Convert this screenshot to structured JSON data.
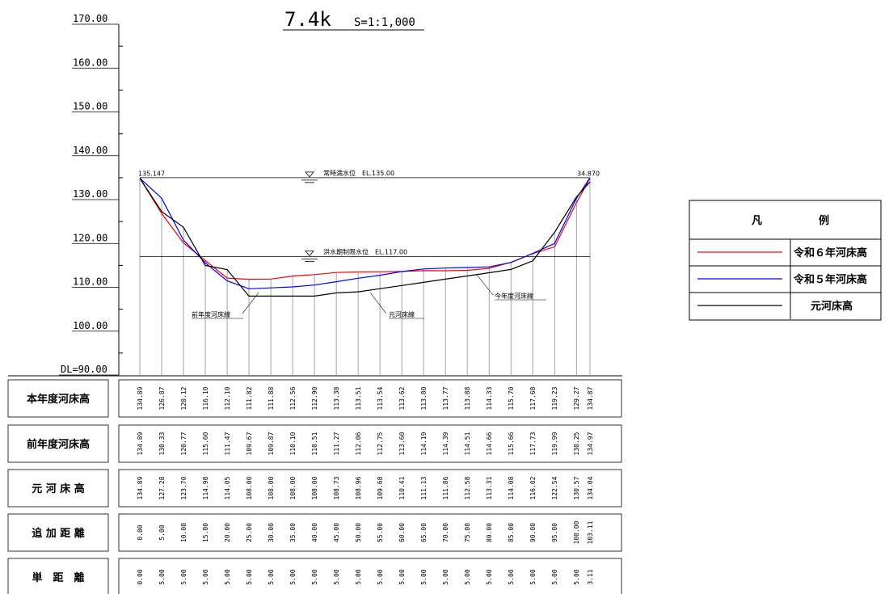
{
  "chart_data": {
    "type": "line",
    "title": "7.4k",
    "scale_label": "S=1:1,000",
    "datum_label": "DL=90.00",
    "y_ticks": [
      "170.00",
      "160.00",
      "150.00",
      "140.00",
      "130.00",
      "120.00",
      "110.00",
      "100.00"
    ],
    "ylim": [
      90,
      170
    ],
    "xlim": [
      0,
      103.11
    ],
    "x": [
      0,
      5,
      10,
      15,
      20,
      25,
      30,
      35,
      40,
      45,
      50,
      55,
      60,
      65,
      70,
      75,
      80,
      85,
      90,
      95,
      100,
      103.11
    ],
    "series": [
      {
        "name": "令和６年河床高",
        "color": "#ff0000",
        "values": [
          134.89,
          126.87,
          120.12,
          116.1,
          112.1,
          111.82,
          111.88,
          112.56,
          112.9,
          113.38,
          113.51,
          113.54,
          113.62,
          113.8,
          113.77,
          113.88,
          114.33,
          115.7,
          117.68,
          119.23,
          129.27,
          134.87
        ]
      },
      {
        "name": "令和５年河床高",
        "color": "#0000ff",
        "values": [
          134.89,
          130.33,
          120.77,
          115.6,
          111.47,
          109.67,
          109.87,
          110.1,
          110.51,
          111.27,
          112.06,
          112.75,
          113.6,
          114.19,
          114.39,
          114.51,
          114.66,
          115.66,
          117.73,
          119.99,
          130.25,
          134.97
        ]
      },
      {
        "name": "元河床高",
        "color": "#000000",
        "values": [
          134.89,
          127.28,
          123.7,
          114.98,
          114.05,
          108.0,
          108.0,
          108.0,
          108.0,
          108.73,
          108.96,
          109.68,
          110.41,
          111.13,
          111.86,
          112.58,
          113.31,
          114.08,
          116.02,
          122.54,
          130.57,
          134.04
        ]
      }
    ],
    "table_rows": [
      {
        "label": "本年度河床高",
        "values": [
          "134.89",
          "126.87",
          "120.12",
          "116.10",
          "112.10",
          "111.82",
          "111.88",
          "112.56",
          "112.90",
          "113.38",
          "113.51",
          "113.54",
          "113.62",
          "113.80",
          "113.77",
          "113.88",
          "114.33",
          "115.70",
          "117.68",
          "119.23",
          "129.27",
          "134.87"
        ]
      },
      {
        "label": "前年度河床高",
        "values": [
          "134.89",
          "130.33",
          "120.77",
          "115.60",
          "111.47",
          "109.67",
          "109.87",
          "110.10",
          "110.51",
          "111.27",
          "112.06",
          "112.75",
          "113.60",
          "114.19",
          "114.39",
          "114.51",
          "114.66",
          "115.66",
          "117.73",
          "119.99",
          "130.25",
          "134.97"
        ]
      },
      {
        "label": "元 河 床 高",
        "values": [
          "134.89",
          "127.28",
          "123.70",
          "114.98",
          "114.05",
          "108.00",
          "108.00",
          "108.00",
          "108.00",
          "108.73",
          "108.96",
          "109.68",
          "110.41",
          "111.13",
          "111.86",
          "112.58",
          "113.31",
          "114.08",
          "116.02",
          "122.54",
          "130.57",
          "134.04"
        ]
      },
      {
        "label": "追 加 距 離",
        "values": [
          "0.00",
          "5.00",
          "10.00",
          "15.00",
          "20.00",
          "25.00",
          "30.00",
          "35.00",
          "40.00",
          "45.00",
          "50.00",
          "55.00",
          "60.00",
          "65.00",
          "70.00",
          "75.00",
          "80.00",
          "85.00",
          "90.00",
          "95.00",
          "100.00",
          "103.11"
        ]
      },
      {
        "label": "単　距　離",
        "values": [
          "0.00",
          "5.00",
          "5.00",
          "5.00",
          "5.00",
          "5.00",
          "5.00",
          "5.00",
          "5.00",
          "5.00",
          "5.00",
          "5.00",
          "5.00",
          "5.00",
          "5.00",
          "5.00",
          "5.00",
          "5.00",
          "5.00",
          "5.00",
          "5.00",
          "3.11"
        ]
      }
    ],
    "water_levels": [
      {
        "label": "常時満水位　EL.135.00",
        "value": 135.0
      },
      {
        "label": "洪水期制限水位　EL.117.00",
        "value": 117.0
      }
    ],
    "annotations": [
      {
        "text": "前年度河床線"
      },
      {
        "text": "元河床線"
      },
      {
        "text": "今年度河床線"
      }
    ],
    "end_labels": [
      "135.147",
      "34.870"
    ],
    "legend": {
      "title_left": "凡",
      "title_right": "例",
      "placement": "right"
    }
  }
}
